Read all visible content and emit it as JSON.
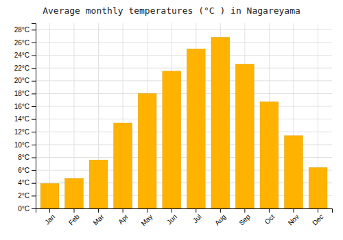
{
  "chart_data": {
    "type": "bar",
    "title": "Average monthly temperatures (°C ) in Nagareyama",
    "categories": [
      "Jan",
      "Feb",
      "Mar",
      "Apr",
      "May",
      "Jun",
      "Jul",
      "Aug",
      "Sep",
      "Oct",
      "Nov",
      "Dec"
    ],
    "values": [
      3.9,
      4.7,
      7.6,
      13.4,
      18.0,
      21.5,
      25.0,
      26.8,
      22.6,
      16.7,
      11.4,
      6.4
    ],
    "color": "#FFB300",
    "ylim": [
      0,
      29
    ],
    "yticks": [
      {
        "value": 0,
        "label": "0°C"
      },
      {
        "value": 2,
        "label": "2°C"
      },
      {
        "value": 4,
        "label": "4°C"
      },
      {
        "value": 6,
        "label": "6°C"
      },
      {
        "value": 8,
        "label": "8°C"
      },
      {
        "value": 10,
        "label": "10°C"
      },
      {
        "value": 12,
        "label": "12°C"
      },
      {
        "value": 14,
        "label": "14°C"
      },
      {
        "value": 16,
        "label": "16°C"
      },
      {
        "value": 18,
        "label": "18°C"
      },
      {
        "value": 20,
        "label": "20°C"
      },
      {
        "value": 22,
        "label": "22°C"
      },
      {
        "value": 24,
        "label": "24°C"
      },
      {
        "value": 26,
        "label": "26°C"
      },
      {
        "value": 28,
        "label": "28°C"
      }
    ],
    "grid": true
  }
}
